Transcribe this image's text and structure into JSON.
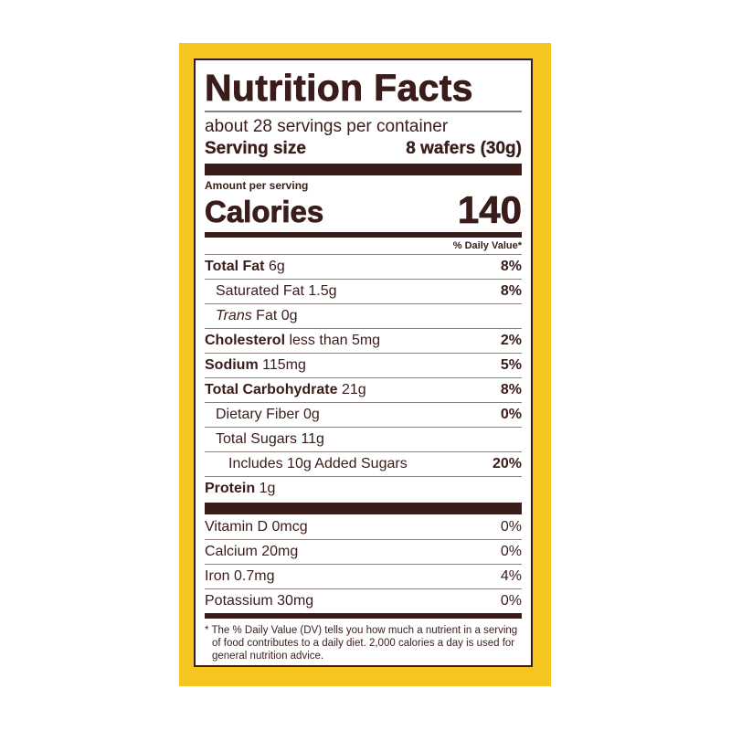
{
  "label": {
    "title": "Nutrition Facts",
    "servings": "about 28 servings per container",
    "serving_size_label": "Serving size",
    "serving_size_value": "8 wafers (30g)",
    "amount_per_serving": "Amount per serving",
    "calories_label": "Calories",
    "calories_value": "140",
    "daily_value_header": "% Daily Value*",
    "nutrients": [
      {
        "name": "Total Fat",
        "amount": "6g",
        "dv": "8%"
      },
      {
        "name": "Saturated Fat",
        "amount": "1.5g",
        "dv": "8%"
      },
      {
        "name": "Trans",
        "suffix": "Fat 0g",
        "dv": ""
      },
      {
        "name": "Cholesterol",
        "amount": "less than 5mg",
        "dv": "2%"
      },
      {
        "name": "Sodium",
        "amount": "115mg",
        "dv": "5%"
      },
      {
        "name": "Total Carbohydrate",
        "amount": "21g",
        "dv": "8%"
      },
      {
        "name": "Dietary Fiber",
        "amount": "0g",
        "dv": "0%"
      },
      {
        "name": "Total Sugars",
        "amount": "11g",
        "dv": ""
      },
      {
        "name": "Includes 10g Added Sugars",
        "amount": "",
        "dv": "20%"
      },
      {
        "name": "Protein",
        "amount": "1g",
        "dv": ""
      }
    ],
    "vitamins": [
      {
        "text": "Vitamin D 0mcg",
        "dv": "0%"
      },
      {
        "text": "Calcium 20mg",
        "dv": "0%"
      },
      {
        "text": "Iron 0.7mg",
        "dv": "4%"
      },
      {
        "text": "Potassium 30mg",
        "dv": "0%"
      }
    ],
    "footnote": "* The % Daily Value (DV) tells you how much a nutrient in a serving of food contributes to a daily diet. 2,000 calories a day is used for general nutrition advice.",
    "colors": {
      "border": "#f6c520",
      "ink": "#3a1c1a"
    }
  }
}
